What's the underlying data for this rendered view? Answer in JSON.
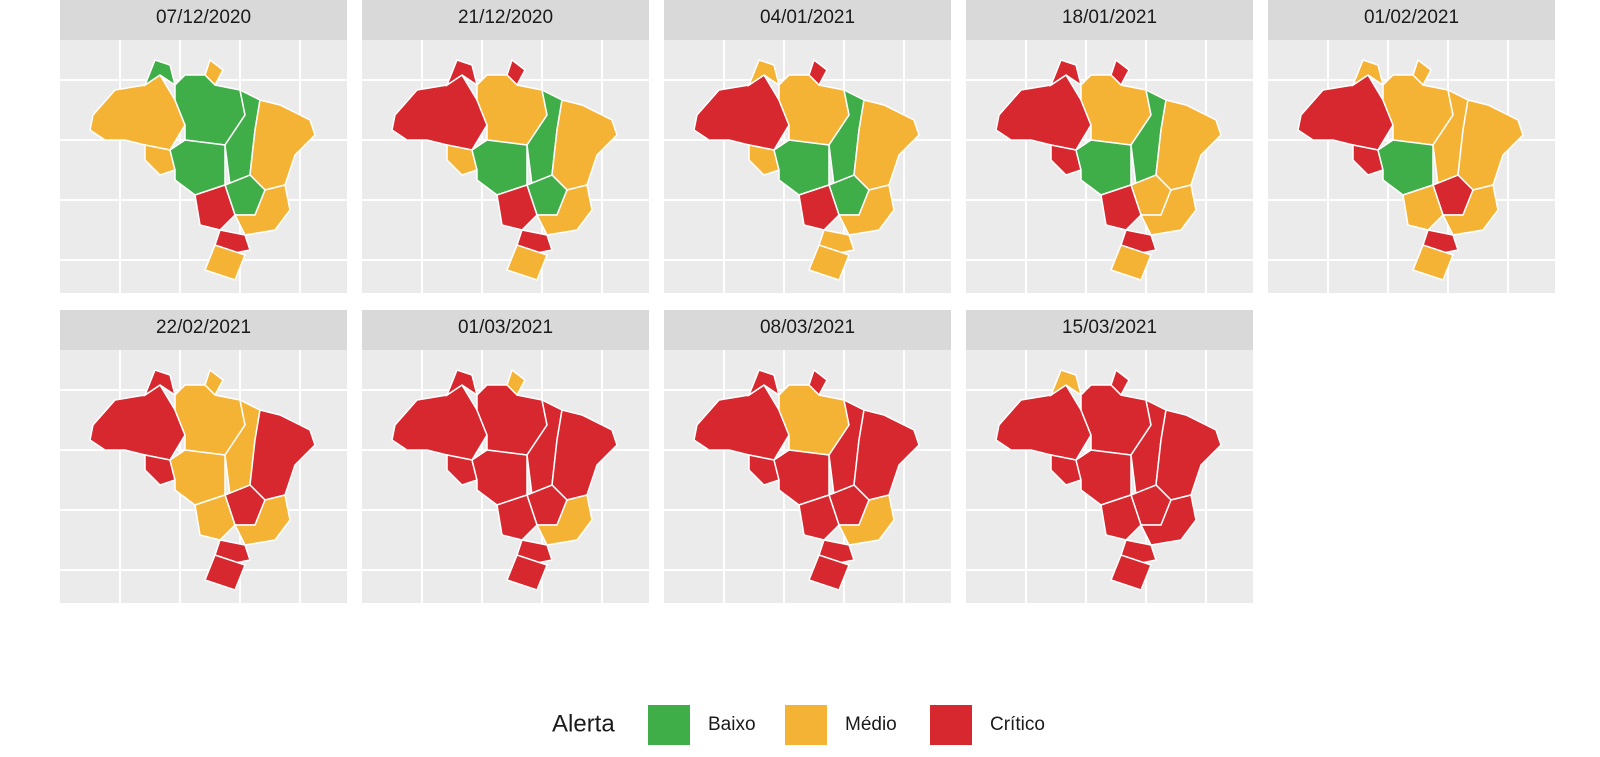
{
  "panels": [
    {
      "title": "07/12/2020",
      "alerts": [
        1,
        0,
        1,
        0,
        1,
        0,
        0,
        1,
        0,
        2,
        1,
        2,
        1
      ]
    },
    {
      "title": "21/12/2020",
      "alerts": [
        2,
        2,
        2,
        1,
        1,
        0,
        0,
        1,
        0,
        2,
        1,
        2,
        1
      ]
    },
    {
      "title": "04/01/2021",
      "alerts": [
        2,
        1,
        2,
        1,
        1,
        0,
        0,
        1,
        0,
        2,
        1,
        1,
        1
      ]
    },
    {
      "title": "18/01/2021",
      "alerts": [
        2,
        2,
        2,
        1,
        2,
        0,
        0,
        1,
        1,
        2,
        1,
        2,
        1
      ]
    },
    {
      "title": "01/02/2021",
      "alerts": [
        2,
        1,
        1,
        1,
        2,
        0,
        1,
        1,
        2,
        1,
        1,
        2,
        1
      ]
    },
    {
      "title": "22/02/2021",
      "alerts": [
        2,
        2,
        1,
        1,
        2,
        1,
        1,
        2,
        2,
        1,
        1,
        2,
        2
      ]
    },
    {
      "title": "01/03/2021",
      "alerts": [
        2,
        2,
        1,
        2,
        2,
        2,
        2,
        2,
        2,
        2,
        1,
        2,
        2
      ]
    },
    {
      "title": "08/03/2021",
      "alerts": [
        2,
        2,
        2,
        1,
        2,
        2,
        2,
        2,
        2,
        2,
        1,
        2,
        2
      ]
    },
    {
      "title": "15/03/2021",
      "alerts": [
        2,
        1,
        2,
        2,
        2,
        2,
        2,
        2,
        2,
        2,
        2,
        2,
        2
      ]
    }
  ],
  "legend": {
    "title": "Alerta",
    "items": [
      {
        "label": "Baixo",
        "color": "#3fae49"
      },
      {
        "label": "Médio",
        "color": "#f5b335"
      },
      {
        "label": "Crítico",
        "color": "#d7282f"
      }
    ]
  }
}
